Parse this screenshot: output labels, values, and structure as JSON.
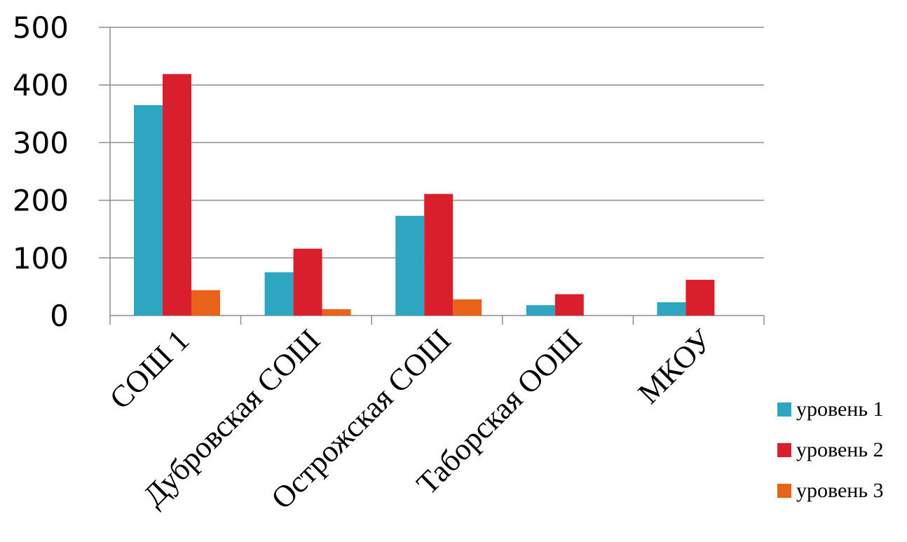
{
  "chart_data": {
    "type": "bar",
    "title": "",
    "xlabel": "",
    "ylabel": "",
    "categories": [
      "СОШ 1",
      "Дубровская СОШ",
      "Острожская СОШ",
      "Таборская ООШ",
      "МКОУ"
    ],
    "series": [
      {
        "name": "уровень 1",
        "color": "#2EA5C3",
        "values": [
          365,
          75,
          173,
          18,
          23
        ]
      },
      {
        "name": "уровень 2",
        "color": "#DA1F2C",
        "values": [
          419,
          116,
          211,
          37,
          62
        ]
      },
      {
        "name": "уровень 3",
        "color": "#E8621A",
        "values": [
          44,
          11,
          28,
          0,
          0
        ]
      }
    ],
    "ylim": [
      0,
      500
    ],
    "yticks": [
      "0",
      "100",
      "200",
      "300",
      "400",
      "500"
    ],
    "grid": true,
    "legend": "right"
  }
}
